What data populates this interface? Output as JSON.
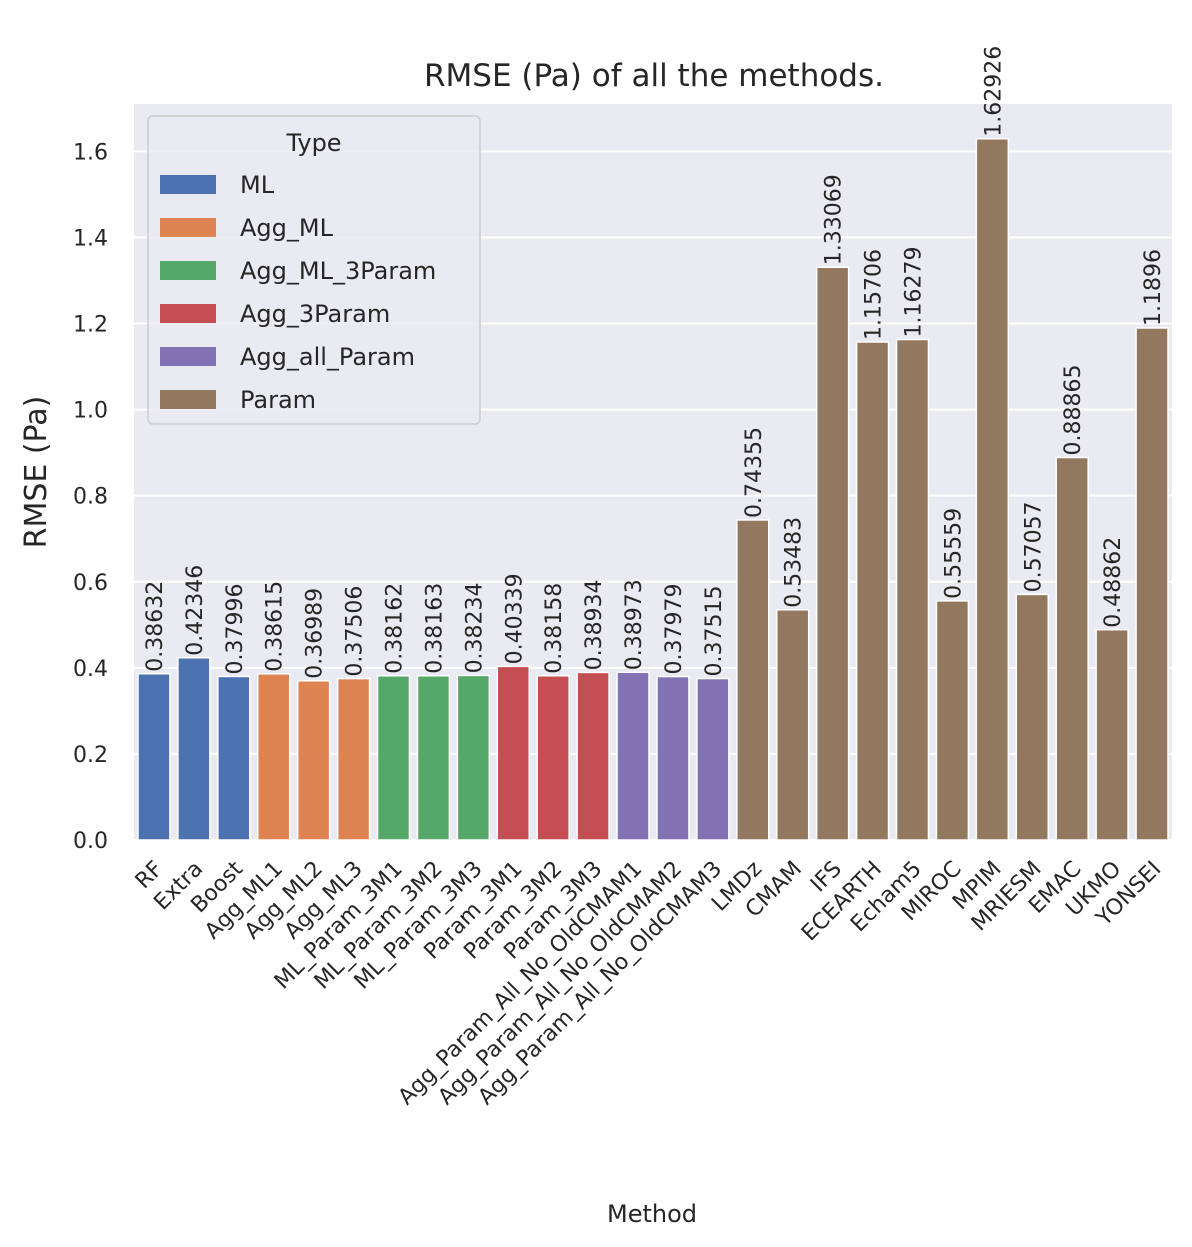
{
  "chart_data": {
    "type": "bar",
    "title": "RMSE (Pa) of all the methods.",
    "xlabel": "Method",
    "ylabel": "RMSE (Pa)",
    "ylim": [
      0,
      1.71
    ],
    "yticks": [
      "0.0",
      "0.2",
      "0.4",
      "0.6",
      "0.8",
      "1.0",
      "1.2",
      "1.4",
      "1.6"
    ],
    "grid": true,
    "legend": {
      "title": "Type",
      "placement": "top-left",
      "entries": [
        {
          "name": "ML",
          "color": "#4c72b0"
        },
        {
          "name": "Agg_ML",
          "color": "#dd8452"
        },
        {
          "name": "Agg_ML_3Param",
          "color": "#55a868"
        },
        {
          "name": "Agg_3Param",
          "color": "#c44e52"
        },
        {
          "name": "Agg_all_Param",
          "color": "#8172b3"
        },
        {
          "name": "Param",
          "color": "#937860"
        }
      ]
    },
    "bars": [
      {
        "category": "RF",
        "value": 0.38632,
        "label": "0.38632",
        "type": "ML"
      },
      {
        "category": "Extra",
        "value": 0.42346,
        "label": "0.42346",
        "type": "ML"
      },
      {
        "category": "Boost",
        "value": 0.37996,
        "label": "0.37996",
        "type": "ML"
      },
      {
        "category": "Agg_ML1",
        "value": 0.38615,
        "label": "0.38615",
        "type": "Agg_ML"
      },
      {
        "category": "Agg_ML2",
        "value": 0.36989,
        "label": "0.36989",
        "type": "Agg_ML"
      },
      {
        "category": "Agg_ML3",
        "value": 0.37506,
        "label": "0.37506",
        "type": "Agg_ML"
      },
      {
        "category": "ML_Param_3M1",
        "value": 0.38162,
        "label": "0.38162",
        "type": "Agg_ML_3Param"
      },
      {
        "category": "ML_Param_3M2",
        "value": 0.38163,
        "label": "0.38163",
        "type": "Agg_ML_3Param"
      },
      {
        "category": "ML_Param_3M3",
        "value": 0.38234,
        "label": "0.38234",
        "type": "Agg_ML_3Param"
      },
      {
        "category": "Param_3M1",
        "value": 0.40339,
        "label": "0.40339",
        "type": "Agg_3Param"
      },
      {
        "category": "Param_3M2",
        "value": 0.38158,
        "label": "0.38158",
        "type": "Agg_3Param"
      },
      {
        "category": "Param_3M3",
        "value": 0.38934,
        "label": "0.38934",
        "type": "Agg_3Param"
      },
      {
        "category": "Agg_Param_All_No_OldCMAM1",
        "value": 0.38973,
        "label": "0.38973",
        "type": "Agg_all_Param"
      },
      {
        "category": "Agg_Param_All_No_OldCMAM2",
        "value": 0.37979,
        "label": "0.37979",
        "type": "Agg_all_Param"
      },
      {
        "category": "Agg_Param_All_No_OldCMAM3",
        "value": 0.37515,
        "label": "0.37515",
        "type": "Agg_all_Param"
      },
      {
        "category": "LMDz",
        "value": 0.74355,
        "label": "0.74355",
        "type": "Param"
      },
      {
        "category": "CMAM",
        "value": 0.53483,
        "label": "0.53483",
        "type": "Param"
      },
      {
        "category": "IFS",
        "value": 1.33069,
        "label": "1.33069",
        "type": "Param"
      },
      {
        "category": "ECEARTH",
        "value": 1.15706,
        "label": "1.15706",
        "type": "Param"
      },
      {
        "category": "Echam5",
        "value": 1.16279,
        "label": "1.16279",
        "type": "Param"
      },
      {
        "category": "MIROC",
        "value": 0.55559,
        "label": "0.55559",
        "type": "Param"
      },
      {
        "category": "MPIM",
        "value": 1.62926,
        "label": "1.62926",
        "type": "Param"
      },
      {
        "category": "MRIESM",
        "value": 0.57057,
        "label": "0.57057",
        "type": "Param"
      },
      {
        "category": "EMAC",
        "value": 0.88865,
        "label": "0.88865",
        "type": "Param"
      },
      {
        "category": "UKMO",
        "value": 0.48862,
        "label": "0.48862",
        "type": "Param"
      },
      {
        "category": "YONSEI",
        "value": 1.1896,
        "label": "1.1896",
        "type": "Param"
      }
    ],
    "colors": {
      "plot_background": "#eaeaf2",
      "grid": "#ffffff",
      "text": "#262626"
    }
  }
}
